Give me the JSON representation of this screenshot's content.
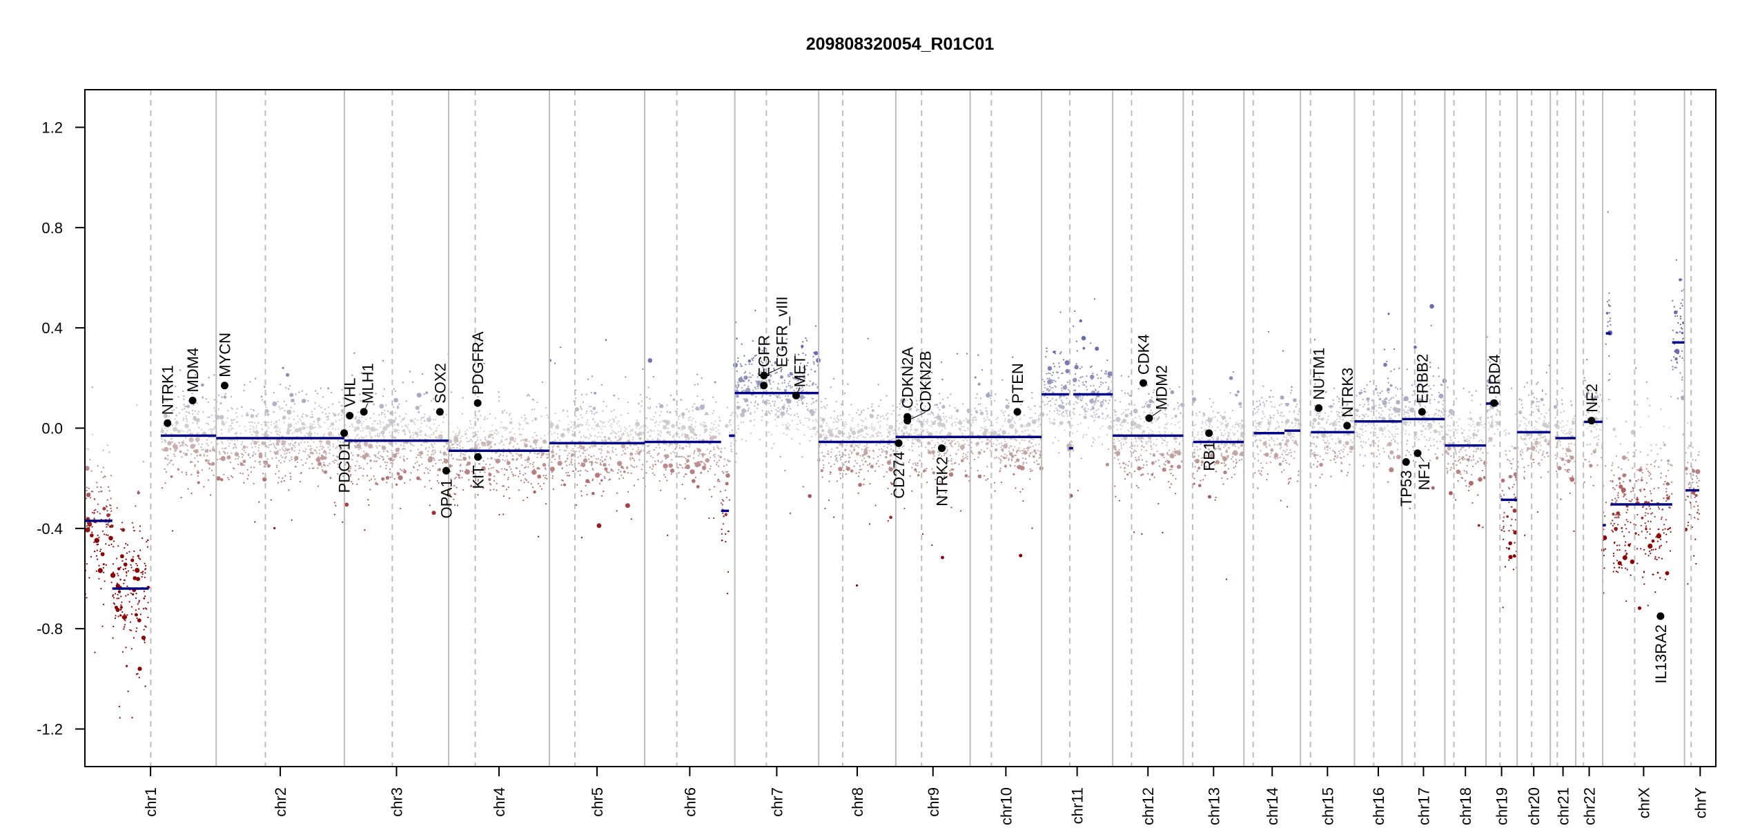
{
  "chart_data": {
    "type": "scatter",
    "title": "209808320054_R01C01",
    "xlabel": "",
    "ylabel": "",
    "ylim": [
      -1.35,
      1.35
    ],
    "yticks": [
      "-1.2",
      "-0.8",
      "-0.4",
      "0.0",
      "0.4",
      "0.8",
      "1.2"
    ],
    "ytick_values": [
      -1.2,
      -0.8,
      -0.4,
      0.0,
      0.4,
      0.8,
      1.2
    ],
    "grid": false,
    "colors": {
      "loss": "#8b0000",
      "neutral": "#d3d3d3",
      "gain": "#6a6ab0",
      "segment": "#00008b",
      "gene": "#000000",
      "boundary": "#bdbdbd"
    },
    "chromosomes": [
      {
        "name": "chr1",
        "length_mb": 249.25,
        "centromere_mb": 125.0
      },
      {
        "name": "chr2",
        "length_mb": 243.2,
        "centromere_mb": 93.3
      },
      {
        "name": "chr3",
        "length_mb": 198.0,
        "centromere_mb": 91.0
      },
      {
        "name": "chr4",
        "length_mb": 191.15,
        "centromere_mb": 50.4
      },
      {
        "name": "chr5",
        "length_mb": 180.9,
        "centromere_mb": 48.4
      },
      {
        "name": "chr6",
        "length_mb": 171.1,
        "centromere_mb": 61.0
      },
      {
        "name": "chr7",
        "length_mb": 159.1,
        "centromere_mb": 59.9
      },
      {
        "name": "chr8",
        "length_mb": 146.4,
        "centromere_mb": 45.6
      },
      {
        "name": "chr9",
        "length_mb": 141.2,
        "centromere_mb": 49.0
      },
      {
        "name": "chr10",
        "length_mb": 135.5,
        "centromere_mb": 40.2
      },
      {
        "name": "chr11",
        "length_mb": 135.0,
        "centromere_mb": 53.7
      },
      {
        "name": "chr12",
        "length_mb": 133.85,
        "centromere_mb": 35.8
      },
      {
        "name": "chr13",
        "length_mb": 115.2,
        "centromere_mb": 17.9
      },
      {
        "name": "chr14",
        "length_mb": 107.35,
        "centromere_mb": 17.6
      },
      {
        "name": "chr15",
        "length_mb": 102.5,
        "centromere_mb": 19.0
      },
      {
        "name": "chr16",
        "length_mb": 90.35,
        "centromere_mb": 36.6
      },
      {
        "name": "chr17",
        "length_mb": 81.2,
        "centromere_mb": 24.0
      },
      {
        "name": "chr18",
        "length_mb": 78.1,
        "centromere_mb": 17.2
      },
      {
        "name": "chr19",
        "length_mb": 59.1,
        "centromere_mb": 26.5
      },
      {
        "name": "chr20",
        "length_mb": 63.0,
        "centromere_mb": 27.5
      },
      {
        "name": "chr21",
        "length_mb": 48.1,
        "centromere_mb": 13.2
      },
      {
        "name": "chr22",
        "length_mb": 51.3,
        "centromere_mb": 14.7
      },
      {
        "name": "chrX",
        "length_mb": 155.3,
        "centromere_mb": 60.6
      },
      {
        "name": "chrY",
        "length_mb": 59.4,
        "centromere_mb": 12.5
      }
    ],
    "segments": [
      {
        "chr": "chr1",
        "start": 0,
        "end": 52,
        "value": -0.37
      },
      {
        "chr": "chr1",
        "start": 52,
        "end": 121,
        "value": -0.64
      },
      {
        "chr": "chr1",
        "start": 144,
        "end": 249,
        "value": -0.03
      },
      {
        "chr": "chr2",
        "start": 0,
        "end": 243,
        "value": -0.04
      },
      {
        "chr": "chr3",
        "start": 0,
        "end": 198,
        "value": -0.05
      },
      {
        "chr": "chr4",
        "start": 0,
        "end": 191,
        "value": -0.09
      },
      {
        "chr": "chr5",
        "start": 0,
        "end": 181,
        "value": -0.06
      },
      {
        "chr": "chr6",
        "start": 0,
        "end": 145,
        "value": -0.055
      },
      {
        "chr": "chr6",
        "start": 145,
        "end": 160,
        "value": -0.33
      },
      {
        "chr": "chr6",
        "start": 160,
        "end": 171,
        "value": -0.03
      },
      {
        "chr": "chr7",
        "start": 0,
        "end": 159,
        "value": 0.14
      },
      {
        "chr": "chr8",
        "start": 0,
        "end": 146,
        "value": -0.055
      },
      {
        "chr": "chr9",
        "start": 0,
        "end": 141,
        "value": -0.035
      },
      {
        "chr": "chr10",
        "start": 0,
        "end": 135.5,
        "value": -0.035
      },
      {
        "chr": "chr11",
        "start": 0,
        "end": 52,
        "value": 0.135
      },
      {
        "chr": "chr11",
        "start": 52,
        "end": 60,
        "value": -0.08
      },
      {
        "chr": "chr11",
        "start": 60,
        "end": 135,
        "value": 0.135
      },
      {
        "chr": "chr12",
        "start": 0,
        "end": 134,
        "value": -0.03
      },
      {
        "chr": "chr13",
        "start": 19,
        "end": 115,
        "value": -0.055
      },
      {
        "chr": "chr14",
        "start": 19,
        "end": 77,
        "value": -0.02
      },
      {
        "chr": "chr14",
        "start": 77,
        "end": 107,
        "value": -0.01
      },
      {
        "chr": "chr15",
        "start": 20,
        "end": 102.5,
        "value": -0.016
      },
      {
        "chr": "chr16",
        "start": 0,
        "end": 90,
        "value": 0.027
      },
      {
        "chr": "chr17",
        "start": 0,
        "end": 81,
        "value": 0.036
      },
      {
        "chr": "chr18",
        "start": 0,
        "end": 78,
        "value": -0.069
      },
      {
        "chr": "chr19",
        "start": 0,
        "end": 24,
        "value": 0.098
      },
      {
        "chr": "chr19",
        "start": 28,
        "end": 59,
        "value": -0.286
      },
      {
        "chr": "chr20",
        "start": 0,
        "end": 63,
        "value": -0.016
      },
      {
        "chr": "chr21",
        "start": 9.5,
        "end": 48,
        "value": -0.04
      },
      {
        "chr": "chr22",
        "start": 16,
        "end": 51,
        "value": 0.025
      },
      {
        "chr": "chrX",
        "start": 0,
        "end": 6,
        "value": -0.387
      },
      {
        "chr": "chrX",
        "start": 6,
        "end": 15,
        "value": 0.378
      },
      {
        "chr": "chrX",
        "start": 15,
        "end": 132,
        "value": -0.304
      },
      {
        "chr": "chrX",
        "start": 132,
        "end": 155,
        "value": 0.342
      },
      {
        "chr": "chrY",
        "start": 2,
        "end": 28,
        "value": -0.248
      }
    ],
    "genes": [
      {
        "name": "NTRK1",
        "chr": "chr1",
        "pos": 156.8,
        "value": 0.02
      },
      {
        "name": "MDM4",
        "chr": "chr1",
        "pos": 204.5,
        "value": 0.11
      },
      {
        "name": "MYCN",
        "chr": "chr2",
        "pos": 16.0,
        "value": 0.17
      },
      {
        "name": "PDCD1",
        "chr": "chr2",
        "pos": 242.8,
        "value": -0.02
      },
      {
        "name": "VHL",
        "chr": "chr3",
        "pos": 10.2,
        "value": 0.05
      },
      {
        "name": "MLH1",
        "chr": "chr3",
        "pos": 37.0,
        "value": 0.065
      },
      {
        "name": "SOX2",
        "chr": "chr3",
        "pos": 181.4,
        "value": 0.065
      },
      {
        "name": "OPA1",
        "chr": "chr3",
        "pos": 193.3,
        "value": -0.17
      },
      {
        "name": "PDGFRA",
        "chr": "chr4",
        "pos": 55.1,
        "value": 0.1
      },
      {
        "name": "KIT",
        "chr": "chr4",
        "pos": 55.5,
        "value": -0.115
      },
      {
        "name": "EGFR",
        "chr": "chr7",
        "pos": 55.1,
        "value": 0.17
      },
      {
        "name": "EGFR_vIII",
        "chr": "chr7",
        "pos": 55.2,
        "value": 0.21
      },
      {
        "name": "MET",
        "chr": "chr7",
        "pos": 116.3,
        "value": 0.13
      },
      {
        "name": "CD274",
        "chr": "chr9",
        "pos": 5.5,
        "value": -0.06
      },
      {
        "name": "CDKN2A",
        "chr": "chr9",
        "pos": 21.97,
        "value": 0.045
      },
      {
        "name": "CDKN2B",
        "chr": "chr9",
        "pos": 22.0,
        "value": 0.03
      },
      {
        "name": "NTRK2",
        "chr": "chr9",
        "pos": 87.3,
        "value": -0.08
      },
      {
        "name": "PTEN",
        "chr": "chr10",
        "pos": 89.6,
        "value": 0.065
      },
      {
        "name": "CDK4",
        "chr": "chr12",
        "pos": 58.1,
        "value": 0.18
      },
      {
        "name": "MDM2",
        "chr": "chr12",
        "pos": 69.2,
        "value": 0.04
      },
      {
        "name": "RB1",
        "chr": "chr13",
        "pos": 48.9,
        "value": -0.02
      },
      {
        "name": "NUTM1",
        "chr": "chr15",
        "pos": 34.6,
        "value": 0.08
      },
      {
        "name": "NTRK3",
        "chr": "chr15",
        "pos": 88.5,
        "value": 0.01
      },
      {
        "name": "TP53",
        "chr": "chr17",
        "pos": 7.6,
        "value": -0.135
      },
      {
        "name": "NF1",
        "chr": "chr17",
        "pos": 29.5,
        "value": -0.1
      },
      {
        "name": "ERBB2",
        "chr": "chr17",
        "pos": 37.8,
        "value": 0.065
      },
      {
        "name": "BRD4",
        "chr": "chr19",
        "pos": 15.4,
        "value": 0.1
      },
      {
        "name": "NF2",
        "chr": "chr22",
        "pos": 30.0,
        "value": 0.03
      },
      {
        "name": "IL13RA2",
        "chr": "chrX",
        "pos": 109.7,
        "value": -0.75
      }
    ]
  }
}
